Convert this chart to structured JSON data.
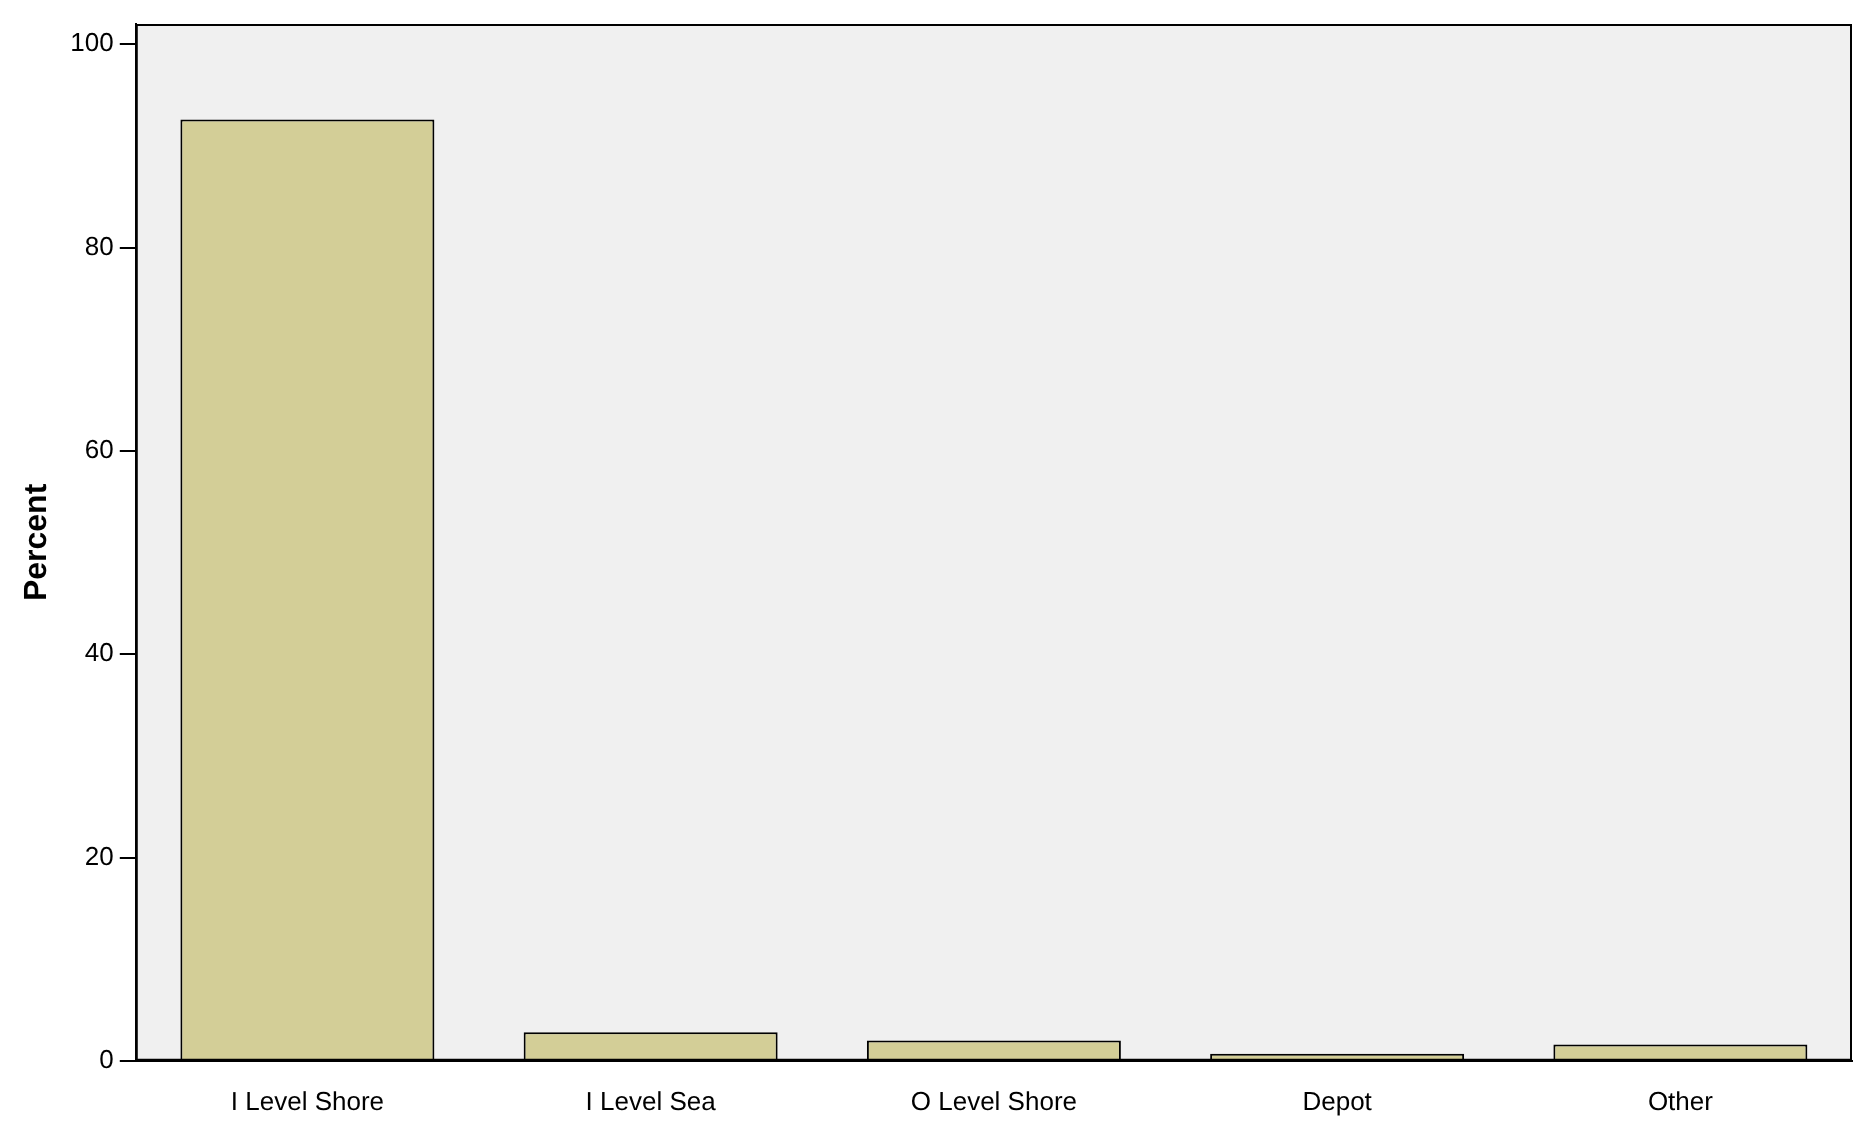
{
  "chart_data": {
    "type": "bar",
    "ylabel": "Percent",
    "categories": [
      "I Level Shore",
      "I Level Sea",
      "O Level Shore",
      "Depot",
      "Other"
    ],
    "values": [
      92.6,
      2.8,
      2.0,
      0.7,
      1.6
    ],
    "color": "#d3ce97",
    "ylim": [
      0,
      102
    ],
    "yticks": [
      0,
      20,
      40,
      60,
      80,
      100
    ],
    "grid": false,
    "legend": false
  }
}
